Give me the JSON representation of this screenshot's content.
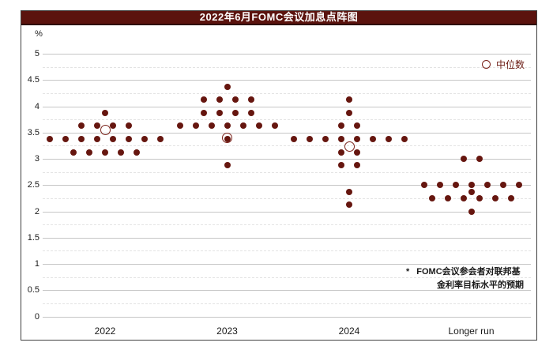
{
  "chart_data": {
    "type": "scatter",
    "subtype": "fomc-dot-plot",
    "title": "2022年6月FOMC会议加息点阵图",
    "ylabel": "%",
    "ylim": [
      0,
      5
    ],
    "ytick_step": 0.5,
    "grid": "solid horizontal lines at 0.5 steps, faint dashed lines at 0.25 steps",
    "legend_label": "中位数",
    "legend_position": "top-right",
    "note_marker": "*",
    "note_line1": "FOMC会议参会者对联邦基",
    "note_line2": "金利率目标水平的预期",
    "categories": [
      "2022",
      "2023",
      "2024",
      "Longer run"
    ],
    "series": [
      {
        "category": "2022",
        "median_circle": 3.55,
        "dots": [
          {
            "rate": 3.875,
            "count": 1
          },
          {
            "rate": 3.625,
            "count": 4
          },
          {
            "rate": 3.375,
            "count": 8
          },
          {
            "rate": 3.125,
            "count": 5
          }
        ]
      },
      {
        "category": "2023",
        "median_circle": 3.4,
        "dots": [
          {
            "rate": 4.375,
            "count": 1
          },
          {
            "rate": 4.125,
            "count": 4
          },
          {
            "rate": 3.875,
            "count": 4
          },
          {
            "rate": 3.625,
            "count": 7
          },
          {
            "rate": 3.375,
            "count": 1
          },
          {
            "rate": 2.875,
            "count": 1
          }
        ]
      },
      {
        "category": "2024",
        "median_circle": 3.24,
        "dots": [
          {
            "rate": 4.125,
            "count": 1
          },
          {
            "rate": 3.875,
            "count": 1
          },
          {
            "rate": 3.625,
            "count": 2
          },
          {
            "rate": 3.375,
            "count": 8
          },
          {
            "rate": 3.125,
            "count": 2
          },
          {
            "rate": 2.875,
            "count": 2
          },
          {
            "rate": 2.375,
            "count": 1
          },
          {
            "rate": 2.125,
            "count": 1
          }
        ]
      },
      {
        "category": "Longer run",
        "median_circle": null,
        "dots": [
          {
            "rate": 3.0,
            "count": 2
          },
          {
            "rate": 2.5,
            "count": 7
          },
          {
            "rate": 2.375,
            "count": 1
          },
          {
            "rate": 2.25,
            "count": 6
          },
          {
            "rate": 2.0,
            "count": 1
          }
        ]
      }
    ],
    "colors": {
      "dot": "#66160f",
      "median_ring": "#7a221a",
      "title_bg": "#5b130e",
      "title_text": "#ffffff",
      "legend_text": "#6b1a12",
      "grid_solid": "#c6c6c6",
      "grid_dashed": "#e3e3e3",
      "axis_text": "#1a1a1a",
      "frame_border": "#3f3f3f"
    }
  }
}
